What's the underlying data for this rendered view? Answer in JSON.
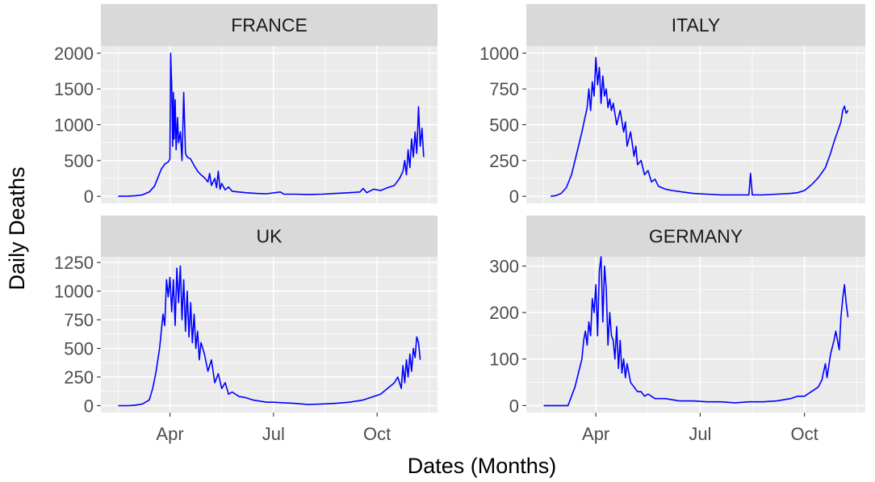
{
  "chart_data": {
    "type": "line",
    "xlabel": "Dates (Months)",
    "ylabel": "Daily Deaths",
    "x_tick_labels": [
      "Apr",
      "Jul",
      "Oct"
    ],
    "x_ticks_month": [
      3,
      6,
      9
    ],
    "xlim_month": [
      1.0,
      10.75
    ],
    "line_color": "#0000ff",
    "panel_background": "#ebebeb",
    "strip_background": "#d9d9d9",
    "grid": true,
    "panels": [
      {
        "name": "FRANCE",
        "yticks": [
          0,
          500,
          1000,
          1500,
          2000
        ],
        "ylim": [
          -100,
          2100
        ],
        "points": [
          [
            1.5,
            0
          ],
          [
            1.8,
            3
          ],
          [
            2.0,
            8
          ],
          [
            2.2,
            20
          ],
          [
            2.4,
            60
          ],
          [
            2.55,
            140
          ],
          [
            2.65,
            260
          ],
          [
            2.75,
            380
          ],
          [
            2.85,
            450
          ],
          [
            2.95,
            480
          ],
          [
            3.0,
            520
          ],
          [
            3.02,
            2000
          ],
          [
            3.05,
            1550
          ],
          [
            3.08,
            700
          ],
          [
            3.1,
            1450
          ],
          [
            3.12,
            800
          ],
          [
            3.15,
            1350
          ],
          [
            3.18,
            650
          ],
          [
            3.22,
            1100
          ],
          [
            3.25,
            750
          ],
          [
            3.3,
            900
          ],
          [
            3.35,
            500
          ],
          [
            3.4,
            1450
          ],
          [
            3.45,
            600
          ],
          [
            3.5,
            550
          ],
          [
            3.6,
            520
          ],
          [
            3.7,
            430
          ],
          [
            3.8,
            350
          ],
          [
            3.9,
            300
          ],
          [
            4.0,
            260
          ],
          [
            4.1,
            200
          ],
          [
            4.15,
            320
          ],
          [
            4.2,
            150
          ],
          [
            4.3,
            250
          ],
          [
            4.35,
            120
          ],
          [
            4.4,
            350
          ],
          [
            4.45,
            100
          ],
          [
            4.5,
            180
          ],
          [
            4.6,
            90
          ],
          [
            4.7,
            130
          ],
          [
            4.8,
            70
          ],
          [
            5.0,
            60
          ],
          [
            5.2,
            50
          ],
          [
            5.5,
            40
          ],
          [
            5.8,
            35
          ],
          [
            6.2,
            60
          ],
          [
            6.3,
            30
          ],
          [
            6.6,
            30
          ],
          [
            7.0,
            25
          ],
          [
            7.4,
            30
          ],
          [
            7.8,
            40
          ],
          [
            8.2,
            50
          ],
          [
            8.5,
            60
          ],
          [
            8.6,
            110
          ],
          [
            8.7,
            50
          ],
          [
            8.9,
            100
          ],
          [
            9.1,
            80
          ],
          [
            9.3,
            120
          ],
          [
            9.5,
            150
          ],
          [
            9.65,
            250
          ],
          [
            9.75,
            350
          ],
          [
            9.8,
            500
          ],
          [
            9.85,
            300
          ],
          [
            9.9,
            650
          ],
          [
            9.95,
            400
          ],
          [
            10.0,
            800
          ],
          [
            10.05,
            550
          ],
          [
            10.1,
            900
          ],
          [
            10.15,
            600
          ],
          [
            10.2,
            1250
          ],
          [
            10.25,
            700
          ],
          [
            10.3,
            950
          ],
          [
            10.35,
            550
          ]
        ]
      },
      {
        "name": "ITALY",
        "yticks": [
          0,
          250,
          500,
          750,
          1000
        ],
        "ylim": [
          -50,
          1050
        ],
        "points": [
          [
            1.7,
            0
          ],
          [
            1.85,
            5
          ],
          [
            2.0,
            20
          ],
          [
            2.15,
            60
          ],
          [
            2.3,
            150
          ],
          [
            2.45,
            300
          ],
          [
            2.6,
            450
          ],
          [
            2.75,
            620
          ],
          [
            2.8,
            750
          ],
          [
            2.85,
            600
          ],
          [
            2.9,
            800
          ],
          [
            2.95,
            700
          ],
          [
            3.0,
            970
          ],
          [
            3.05,
            780
          ],
          [
            3.1,
            900
          ],
          [
            3.15,
            650
          ],
          [
            3.2,
            840
          ],
          [
            3.25,
            700
          ],
          [
            3.3,
            750
          ],
          [
            3.35,
            620
          ],
          [
            3.4,
            680
          ],
          [
            3.45,
            600
          ],
          [
            3.5,
            650
          ],
          [
            3.6,
            500
          ],
          [
            3.7,
            600
          ],
          [
            3.8,
            450
          ],
          [
            3.85,
            520
          ],
          [
            3.9,
            350
          ],
          [
            4.0,
            450
          ],
          [
            4.1,
            280
          ],
          [
            4.15,
            350
          ],
          [
            4.2,
            220
          ],
          [
            4.3,
            250
          ],
          [
            4.4,
            150
          ],
          [
            4.5,
            180
          ],
          [
            4.6,
            100
          ],
          [
            4.7,
            120
          ],
          [
            4.8,
            70
          ],
          [
            5.0,
            50
          ],
          [
            5.2,
            40
          ],
          [
            5.5,
            30
          ],
          [
            5.8,
            20
          ],
          [
            6.2,
            15
          ],
          [
            6.6,
            10
          ],
          [
            7.0,
            10
          ],
          [
            7.4,
            10
          ],
          [
            7.45,
            160
          ],
          [
            7.5,
            10
          ],
          [
            7.8,
            10
          ],
          [
            8.2,
            15
          ],
          [
            8.6,
            20
          ],
          [
            8.8,
            25
          ],
          [
            9.0,
            40
          ],
          [
            9.2,
            80
          ],
          [
            9.4,
            130
          ],
          [
            9.6,
            200
          ],
          [
            9.75,
            300
          ],
          [
            9.85,
            380
          ],
          [
            9.95,
            450
          ],
          [
            10.05,
            520
          ],
          [
            10.1,
            600
          ],
          [
            10.15,
            630
          ],
          [
            10.2,
            580
          ],
          [
            10.25,
            600
          ]
        ]
      },
      {
        "name": "UK",
        "yticks": [
          0,
          250,
          500,
          750,
          1000,
          1250
        ],
        "ylim": [
          -60,
          1300
        ],
        "points": [
          [
            1.5,
            0
          ],
          [
            1.8,
            0
          ],
          [
            2.0,
            5
          ],
          [
            2.2,
            15
          ],
          [
            2.4,
            50
          ],
          [
            2.5,
            150
          ],
          [
            2.6,
            300
          ],
          [
            2.7,
            500
          ],
          [
            2.75,
            650
          ],
          [
            2.8,
            800
          ],
          [
            2.85,
            700
          ],
          [
            2.9,
            1100
          ],
          [
            2.95,
            950
          ],
          [
            3.0,
            1120
          ],
          [
            3.05,
            820
          ],
          [
            3.1,
            1100
          ],
          [
            3.15,
            700
          ],
          [
            3.2,
            1200
          ],
          [
            3.25,
            900
          ],
          [
            3.3,
            1220
          ],
          [
            3.35,
            750
          ],
          [
            3.4,
            1100
          ],
          [
            3.45,
            650
          ],
          [
            3.5,
            1000
          ],
          [
            3.55,
            600
          ],
          [
            3.6,
            900
          ],
          [
            3.65,
            550
          ],
          [
            3.7,
            800
          ],
          [
            3.75,
            500
          ],
          [
            3.8,
            650
          ],
          [
            3.85,
            400
          ],
          [
            3.9,
            550
          ],
          [
            4.0,
            450
          ],
          [
            4.1,
            300
          ],
          [
            4.2,
            400
          ],
          [
            4.3,
            200
          ],
          [
            4.4,
            280
          ],
          [
            4.5,
            150
          ],
          [
            4.6,
            200
          ],
          [
            4.7,
            100
          ],
          [
            4.8,
            120
          ],
          [
            5.0,
            80
          ],
          [
            5.2,
            70
          ],
          [
            5.4,
            50
          ],
          [
            5.6,
            40
          ],
          [
            5.8,
            30
          ],
          [
            6.0,
            30
          ],
          [
            6.3,
            25
          ],
          [
            6.6,
            20
          ],
          [
            7.0,
            10
          ],
          [
            7.4,
            15
          ],
          [
            7.8,
            20
          ],
          [
            8.2,
            30
          ],
          [
            8.6,
            50
          ],
          [
            8.9,
            80
          ],
          [
            9.1,
            100
          ],
          [
            9.3,
            150
          ],
          [
            9.5,
            200
          ],
          [
            9.6,
            250
          ],
          [
            9.7,
            150
          ],
          [
            9.75,
            350
          ],
          [
            9.8,
            200
          ],
          [
            9.85,
            400
          ],
          [
            9.9,
            250
          ],
          [
            9.95,
            450
          ],
          [
            10.0,
            300
          ],
          [
            10.05,
            500
          ],
          [
            10.1,
            420
          ],
          [
            10.15,
            600
          ],
          [
            10.2,
            550
          ],
          [
            10.25,
            400
          ]
        ]
      },
      {
        "name": "GERMANY",
        "yticks": [
          0,
          100,
          200,
          300
        ],
        "ylim": [
          -15,
          320
        ],
        "points": [
          [
            1.5,
            0
          ],
          [
            1.8,
            0
          ],
          [
            2.0,
            0
          ],
          [
            2.2,
            0
          ],
          [
            2.3,
            20
          ],
          [
            2.4,
            40
          ],
          [
            2.5,
            70
          ],
          [
            2.6,
            100
          ],
          [
            2.65,
            140
          ],
          [
            2.7,
            160
          ],
          [
            2.75,
            130
          ],
          [
            2.8,
            180
          ],
          [
            2.85,
            150
          ],
          [
            2.9,
            230
          ],
          [
            2.95,
            200
          ],
          [
            3.0,
            260
          ],
          [
            3.05,
            150
          ],
          [
            3.1,
            290
          ],
          [
            3.15,
            320
          ],
          [
            3.2,
            180
          ],
          [
            3.25,
            300
          ],
          [
            3.3,
            250
          ],
          [
            3.35,
            130
          ],
          [
            3.4,
            200
          ],
          [
            3.45,
            150
          ],
          [
            3.5,
            140
          ],
          [
            3.55,
            100
          ],
          [
            3.6,
            170
          ],
          [
            3.65,
            80
          ],
          [
            3.7,
            140
          ],
          [
            3.75,
            70
          ],
          [
            3.8,
            100
          ],
          [
            3.85,
            60
          ],
          [
            3.9,
            90
          ],
          [
            4.0,
            50
          ],
          [
            4.1,
            40
          ],
          [
            4.2,
            30
          ],
          [
            4.3,
            30
          ],
          [
            4.4,
            20
          ],
          [
            4.5,
            25
          ],
          [
            4.7,
            15
          ],
          [
            5.0,
            15
          ],
          [
            5.4,
            10
          ],
          [
            5.8,
            10
          ],
          [
            6.2,
            8
          ],
          [
            6.6,
            8
          ],
          [
            7.0,
            6
          ],
          [
            7.4,
            8
          ],
          [
            7.8,
            8
          ],
          [
            8.2,
            10
          ],
          [
            8.6,
            15
          ],
          [
            8.8,
            20
          ],
          [
            9.0,
            20
          ],
          [
            9.2,
            30
          ],
          [
            9.4,
            40
          ],
          [
            9.5,
            55
          ],
          [
            9.6,
            90
          ],
          [
            9.65,
            60
          ],
          [
            9.75,
            110
          ],
          [
            9.85,
            140
          ],
          [
            9.9,
            160
          ],
          [
            10.0,
            120
          ],
          [
            10.05,
            190
          ],
          [
            10.1,
            230
          ],
          [
            10.15,
            260
          ],
          [
            10.2,
            220
          ],
          [
            10.25,
            190
          ]
        ]
      }
    ]
  }
}
